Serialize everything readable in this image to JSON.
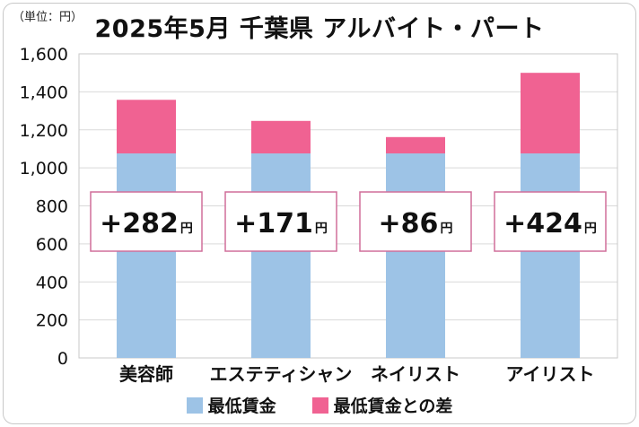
{
  "unit_label": "（単位：円）",
  "chart_data": {
    "type": "bar",
    "stacked": true,
    "title": "2025年5月 千葉県 アルバイト・パート",
    "categories": [
      "美容師",
      "エステティシャン",
      "ネイリスト",
      "アイリスト"
    ],
    "series": [
      {
        "name": "最低賃金",
        "color": "#9dc3e6",
        "values": [
          1076,
          1076,
          1076,
          1076
        ]
      },
      {
        "name": "最低賃金との差",
        "color": "#f06292",
        "values": [
          282,
          171,
          86,
          424
        ]
      }
    ],
    "annotations": [
      "+282",
      "+171",
      "+86",
      "+424"
    ],
    "annotation_unit": "円",
    "ylim": [
      0,
      1600
    ],
    "yticks": [
      0,
      200,
      400,
      600,
      800,
      1000,
      1200,
      1400,
      1600
    ],
    "ytick_labels": [
      "0",
      "200",
      "400",
      "600",
      "800",
      "1,000",
      "1,200",
      "1,400",
      "1,600"
    ],
    "grid": true,
    "legend_position": "bottom"
  }
}
